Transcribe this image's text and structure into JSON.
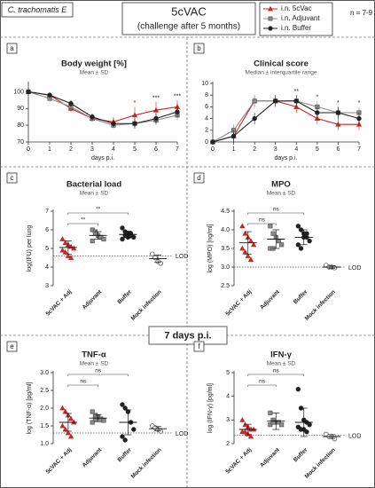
{
  "header": {
    "strain": "C. trachomatis E",
    "title": "5cVAC",
    "subtitle": "(challenge after 5 months)",
    "n": "n = 7-9",
    "section": "7 days p.i."
  },
  "chart_data": [
    {
      "type": "line",
      "panel_label": "a",
      "title": "Body weight [%]",
      "subtitle": "Mean ± SD",
      "xlabel": "days p.i.",
      "x": [
        0,
        1,
        2,
        3,
        4,
        5,
        6,
        7
      ],
      "xlim": [
        0,
        7
      ],
      "xticks": [
        0,
        1,
        2,
        3,
        4,
        5,
        6,
        7
      ],
      "ylim": [
        70,
        105
      ],
      "yticks": [
        70,
        80,
        90,
        100
      ],
      "series": [
        {
          "name": "i.n. 5cVac",
          "color": "#c62828",
          "marker": "triangle",
          "values": [
            100,
            98,
            90,
            84,
            82,
            86,
            89,
            91
          ],
          "errors": [
            0,
            1,
            2,
            2,
            3,
            5,
            5,
            4
          ]
        },
        {
          "name": "i.n. Adjuvant",
          "color": "#8a8a8a",
          "marker": "square",
          "values": [
            100,
            96,
            91,
            84,
            80,
            81,
            83,
            86
          ],
          "errors": [
            0,
            2,
            2,
            2,
            2,
            3,
            3,
            3
          ]
        },
        {
          "name": "i.n. Buffer",
          "color": "#222222",
          "marker": "circle",
          "values": [
            100,
            98,
            93,
            85,
            81,
            81,
            84,
            88
          ],
          "errors": [
            0,
            1,
            2,
            2,
            2,
            3,
            3,
            3
          ]
        }
      ],
      "annotations": [
        {
          "x": 5,
          "text": "*"
        },
        {
          "x": 6,
          "text": "***"
        },
        {
          "x": 7,
          "text": "***"
        }
      ]
    },
    {
      "type": "line",
      "panel_label": "b",
      "title": "Clinical score",
      "subtitle": "Median ± interquartile range",
      "xlabel": "days p.i.",
      "x": [
        0,
        1,
        2,
        3,
        4,
        5,
        6,
        7
      ],
      "xlim": [
        0,
        7
      ],
      "xticks": [
        0,
        1,
        2,
        3,
        4,
        5,
        6,
        7
      ],
      "ylim": [
        0,
        10
      ],
      "yticks": [
        0,
        2,
        4,
        6,
        8,
        10
      ],
      "series": [
        {
          "name": "i.n. 5cVac",
          "color": "#c62828",
          "marker": "triangle",
          "values": [
            0,
            1,
            7,
            7,
            6,
            4,
            3,
            3
          ],
          "errors": [
            0,
            1,
            1,
            1,
            1,
            1,
            1,
            1
          ]
        },
        {
          "name": "i.n. Adjuvant",
          "color": "#8a8a8a",
          "marker": "square",
          "values": [
            0,
            2,
            7,
            7,
            7,
            6,
            5,
            5
          ],
          "errors": [
            0,
            1,
            1,
            1,
            1,
            1,
            1,
            1
          ]
        },
        {
          "name": "i.n. Buffer",
          "color": "#222222",
          "marker": "circle",
          "values": [
            0,
            1,
            4,
            7,
            7,
            5,
            5,
            4
          ],
          "errors": [
            0,
            1,
            1,
            1,
            1,
            1,
            1,
            1
          ]
        }
      ],
      "annotations": [
        {
          "x": 4,
          "text": "**"
        },
        {
          "x": 5,
          "text": "*"
        },
        {
          "x": 6,
          "text": "*"
        },
        {
          "x": 7,
          "text": "*"
        }
      ]
    },
    {
      "type": "dot",
      "panel_label": "c",
      "title": "Bacterial load",
      "subtitle": "Mean ± SD",
      "ylabel": "log(IFU) per lung",
      "categories": [
        "5cVAC + Adj",
        "Adjuvant",
        "Buffer",
        "Mock infection"
      ],
      "ylim": [
        3,
        7
      ],
      "yticks": [
        3,
        4,
        5,
        6,
        7
      ],
      "colors": [
        "#c62828",
        "#8a8a8a",
        "#222222",
        "#ffffff"
      ],
      "markers": [
        "triangle",
        "square",
        "circle",
        "circle"
      ],
      "values": [
        [
          5.5,
          5.3,
          5.2,
          5.1,
          5.0,
          4.9,
          4.8,
          4.6,
          4.5
        ],
        [
          6.0,
          5.9,
          5.7,
          5.6,
          5.5,
          5.4,
          5.8
        ],
        [
          6.1,
          5.9,
          5.8,
          5.7,
          5.6,
          5.5,
          5.7,
          5.6,
          5.8
        ],
        [
          4.7,
          4.5,
          4.3,
          4.2
        ]
      ],
      "means": [
        5.05,
        5.7,
        5.75,
        4.45
      ],
      "errors": [
        0.35,
        0.2,
        0.18,
        0.2
      ],
      "lod": 4.6,
      "lod_label": "LOD",
      "brackets": [
        {
          "from": 0,
          "to": 1,
          "label": "**"
        },
        {
          "from": 0,
          "to": 2,
          "label": "**"
        }
      ]
    },
    {
      "type": "dot",
      "panel_label": "d",
      "title": "MPO",
      "subtitle": "Mean ± SD",
      "ylabel": "log (MPO) [ng/ml]",
      "categories": [
        "5cVAC + Adj",
        "Adjuvant",
        "Buffer",
        "Mock infection"
      ],
      "ylim": [
        2.5,
        4.5
      ],
      "yticks": [
        2.5,
        {
          "value": 3,
          "label": "3.0"
        },
        3.5,
        {
          "value": 4,
          "label": "4.0"
        },
        4.5
      ],
      "colors": [
        "#c62828",
        "#8a8a8a",
        "#222222",
        "#ffffff"
      ],
      "markers": [
        "triangle",
        "square",
        "circle",
        "circle"
      ],
      "values": [
        [
          4.1,
          3.9,
          3.8,
          3.7,
          3.6,
          3.5,
          3.4,
          3.3,
          3.2
        ],
        [
          4.1,
          3.9,
          3.8,
          3.7,
          3.6,
          3.5,
          3.5
        ],
        [
          4.1,
          4.0,
          3.9,
          3.8,
          3.7,
          3.6,
          3.5,
          3.8,
          3.9
        ],
        [
          3.05,
          3.0,
          3.0,
          2.98
        ]
      ],
      "means": [
        3.65,
        3.75,
        3.8,
        3.0
      ],
      "errors": [
        0.3,
        0.25,
        0.2,
        0.04
      ],
      "lod": 3.0,
      "lod_label": "LOD",
      "brackets": [
        {
          "from": 0,
          "to": 1,
          "label": "ns"
        },
        {
          "from": 0,
          "to": 2,
          "label": "ns"
        }
      ]
    },
    {
      "type": "dot",
      "panel_label": "e",
      "title": "TNF-α",
      "subtitle": "Mean ± SD",
      "ylabel": "log (TNF-α) [pg/ml]",
      "categories": [
        "5cVAC + Adj",
        "Adjuvant",
        "Buffer",
        "Mock infection"
      ],
      "ylim": [
        1,
        3
      ],
      "yticks": [
        {
          "value": 1,
          "label": "1.0"
        },
        1.5,
        {
          "value": 2,
          "label": "2.0"
        },
        2.5,
        {
          "value": 3,
          "label": "3.0"
        }
      ],
      "colors": [
        "#c62828",
        "#8a8a8a",
        "#222222",
        "#ffffff"
      ],
      "markers": [
        "triangle",
        "square",
        "circle",
        "circle"
      ],
      "values": [
        [
          2.0,
          1.9,
          1.8,
          1.7,
          1.6,
          1.5,
          1.4,
          1.3,
          1.2
        ],
        [
          1.9,
          1.8,
          1.75,
          1.7,
          1.65,
          1.6,
          1.7
        ],
        [
          2.1,
          2.0,
          1.9,
          1.6,
          1.4,
          1.2,
          1.1
        ],
        [
          1.5,
          1.45,
          1.4,
          1.35
        ]
      ],
      "means": [
        1.6,
        1.72,
        1.6,
        1.42
      ],
      "errors": [
        0.25,
        0.1,
        0.35,
        0.06
      ],
      "lod": 1.3,
      "lod_label": "LOD",
      "brackets": [
        {
          "from": 0,
          "to": 1,
          "label": "ns"
        },
        {
          "from": 0,
          "to": 2,
          "label": "ns"
        }
      ]
    },
    {
      "type": "dot",
      "panel_label": "f",
      "title": "IFN-γ",
      "subtitle": "Mean ± SD",
      "ylabel": "log (IFN-γ) [pg/ml]",
      "categories": [
        "5cVAC + Adj",
        "Adjuvant",
        "Buffer",
        "Mock infection"
      ],
      "ylim": [
        2,
        5
      ],
      "yticks": [
        2,
        3,
        4,
        5
      ],
      "colors": [
        "#c62828",
        "#8a8a8a",
        "#222222",
        "#ffffff"
      ],
      "markers": [
        "triangle",
        "square",
        "circle",
        "circle"
      ],
      "values": [
        [
          3.0,
          2.8,
          2.7,
          2.6,
          2.6,
          2.5,
          2.5,
          2.4,
          2.3
        ],
        [
          3.3,
          3.0,
          2.9,
          2.9,
          2.8,
          2.8,
          2.9
        ],
        [
          4.3,
          3.5,
          3.0,
          2.9,
          2.8,
          2.7,
          2.6,
          2.6,
          2.5
        ],
        [
          2.4,
          2.3,
          2.3,
          2.2
        ]
      ],
      "means": [
        2.6,
        2.95,
        2.9,
        2.3
      ],
      "errors": [
        0.22,
        0.35,
        0.6,
        0.08
      ],
      "lod": 2.35,
      "lod_label": "LOD",
      "brackets": [
        {
          "from": 0,
          "to": 1,
          "label": "ns"
        },
        {
          "from": 0,
          "to": 2,
          "label": "ns"
        }
      ]
    }
  ]
}
